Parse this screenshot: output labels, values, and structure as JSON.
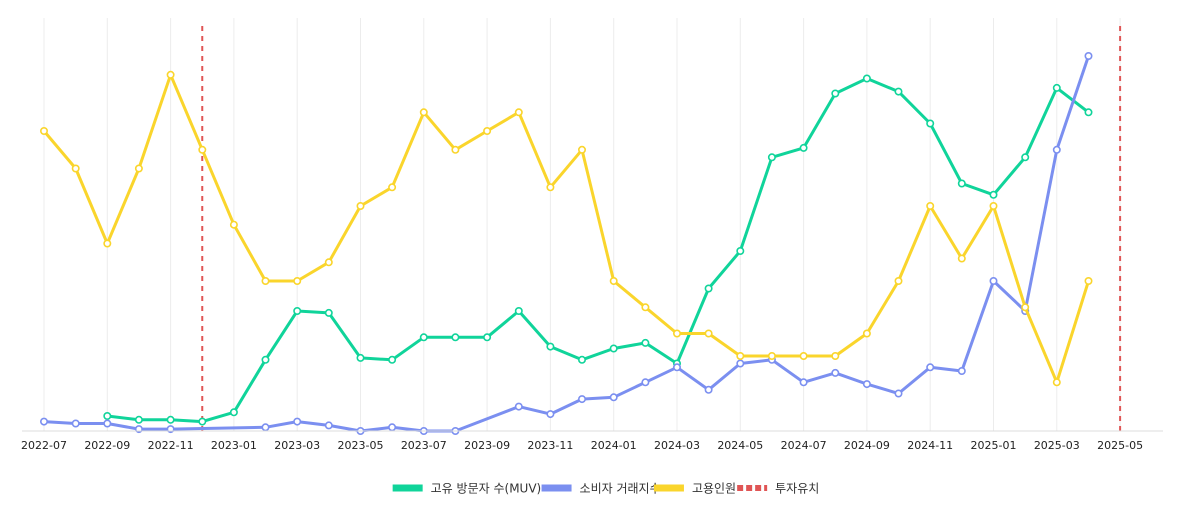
{
  "chart_data": {
    "type": "line",
    "x_ticks": [
      "2022-07",
      "2022-09",
      "2022-11",
      "2023-01",
      "2023-03",
      "2023-05",
      "2023-07",
      "2023-09",
      "2023-11",
      "2024-01",
      "2024-03",
      "2024-05",
      "2024-07",
      "2024-09",
      "2024-11",
      "2025-01",
      "2025-03",
      "2025-05"
    ],
    "grid": "vertical",
    "legend_position": "bottom",
    "series": [
      {
        "name": "고유 방문자 수(MUV)",
        "color": "#10d49a",
        "points": [
          [
            "2022-09-01",
            4
          ],
          [
            "2022-10-01",
            3
          ],
          [
            "2022-11-01",
            3
          ],
          [
            "2022-12-01",
            2.5
          ],
          [
            "2023-01-01",
            5
          ],
          [
            "2023-02-01",
            19
          ],
          [
            "2023-03-01",
            32
          ],
          [
            "2023-04-01",
            31.5
          ],
          [
            "2023-05-01",
            19.5
          ],
          [
            "2023-06-01",
            19
          ],
          [
            "2023-07-01",
            25
          ],
          [
            "2023-08-01",
            25
          ],
          [
            "2023-09-01",
            25
          ],
          [
            "2023-10-01",
            32
          ],
          [
            "2023-11-01",
            22.5
          ],
          [
            "2023-12-01",
            19
          ],
          [
            "2024-01-01",
            22
          ],
          [
            "2024-02-01",
            23.5
          ],
          [
            "2024-03-01",
            18
          ],
          [
            "2024-04-01",
            38
          ],
          [
            "2024-05-01",
            48
          ],
          [
            "2024-06-01",
            73
          ],
          [
            "2024-07-01",
            75.5
          ],
          [
            "2024-08-01",
            90
          ],
          [
            "2024-09-01",
            94
          ],
          [
            "2024-10-01",
            90.5
          ],
          [
            "2024-11-01",
            82
          ],
          [
            "2024-12-01",
            66
          ],
          [
            "2025-01-01",
            63
          ],
          [
            "2025-02-01",
            73
          ],
          [
            "2025-03-01",
            91.5
          ],
          [
            "2025-04-01",
            85
          ]
        ]
      },
      {
        "name": "소비자 거래지수",
        "color": "#7b8ff0",
        "points": [
          [
            "2022-07-01",
            2.5
          ],
          [
            "2022-08-01",
            2
          ],
          [
            "2022-09-01",
            2
          ],
          [
            "2022-10-01",
            0.5
          ],
          [
            "2022-11-01",
            0.5
          ],
          [
            "2023-02-01",
            1
          ],
          [
            "2023-03-01",
            2.5
          ],
          [
            "2023-04-01",
            1.5
          ],
          [
            "2023-05-01",
            0
          ],
          [
            "2023-06-01",
            1
          ],
          [
            "2023-07-01",
            0
          ],
          [
            "2023-08-01",
            0
          ],
          [
            "2023-10-01",
            6.5
          ],
          [
            "2023-11-01",
            4.5
          ],
          [
            "2023-12-01",
            8.5
          ],
          [
            "2024-01-01",
            9
          ],
          [
            "2024-02-01",
            13
          ],
          [
            "2024-03-01",
            17
          ],
          [
            "2024-04-01",
            11
          ],
          [
            "2024-05-01",
            18
          ],
          [
            "2024-06-01",
            19
          ],
          [
            "2024-07-01",
            13
          ],
          [
            "2024-08-01",
            15.5
          ],
          [
            "2024-09-01",
            12.5
          ],
          [
            "2024-10-01",
            10
          ],
          [
            "2024-11-01",
            17
          ],
          [
            "2024-12-01",
            16
          ],
          [
            "2025-01-01",
            40
          ],
          [
            "2025-02-01",
            32
          ],
          [
            "2025-03-01",
            75
          ],
          [
            "2025-04-01",
            100
          ]
        ]
      },
      {
        "name": "고용인원",
        "color": "#fad52c",
        "points": [
          [
            "2022-07-01",
            80
          ],
          [
            "2022-08-01",
            70
          ],
          [
            "2022-09-01",
            50
          ],
          [
            "2022-10-01",
            70
          ],
          [
            "2022-11-01",
            95
          ],
          [
            "2022-12-01",
            75
          ],
          [
            "2023-01-01",
            55
          ],
          [
            "2023-02-01",
            40
          ],
          [
            "2023-03-01",
            40
          ],
          [
            "2023-04-01",
            45
          ],
          [
            "2023-05-01",
            60
          ],
          [
            "2023-06-01",
            65
          ],
          [
            "2023-07-01",
            85
          ],
          [
            "2023-08-01",
            75
          ],
          [
            "2023-09-01",
            80
          ],
          [
            "2023-10-01",
            85
          ],
          [
            "2023-11-01",
            65
          ],
          [
            "2023-12-01",
            75
          ],
          [
            "2024-01-01",
            40
          ],
          [
            "2024-02-01",
            33
          ],
          [
            "2024-03-01",
            26
          ],
          [
            "2024-04-01",
            26
          ],
          [
            "2024-05-01",
            20
          ],
          [
            "2024-06-01",
            20
          ],
          [
            "2024-07-01",
            20
          ],
          [
            "2024-08-01",
            20
          ],
          [
            "2024-09-01",
            26
          ],
          [
            "2024-10-01",
            40
          ],
          [
            "2024-11-01",
            60
          ],
          [
            "2024-12-01",
            46
          ],
          [
            "2025-01-01",
            60
          ],
          [
            "2025-02-01",
            33
          ],
          [
            "2025-03-01",
            13
          ],
          [
            "2025-04-01",
            40
          ]
        ]
      }
    ],
    "markers": {
      "name": "투자유치",
      "color": "#e05555",
      "dates": [
        "2022-12-01",
        "2025-05-01"
      ]
    }
  }
}
